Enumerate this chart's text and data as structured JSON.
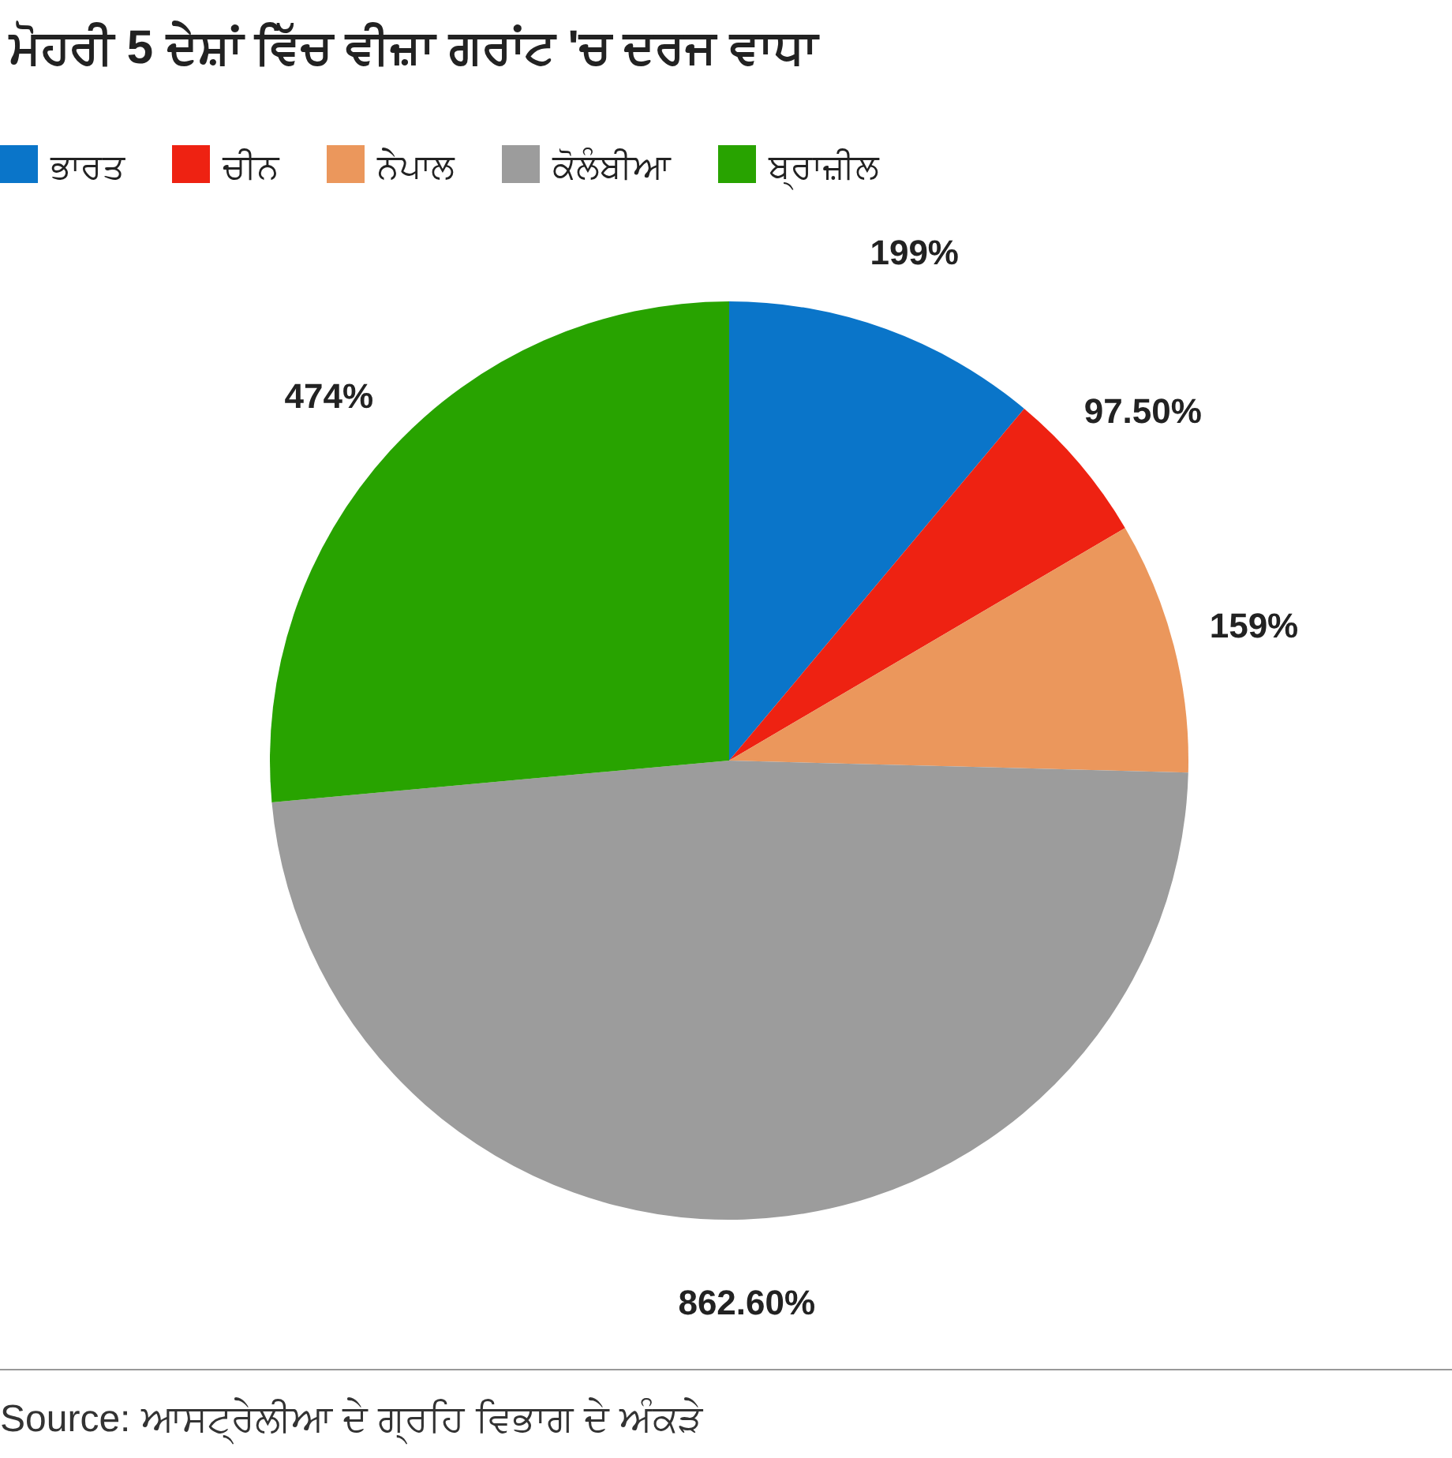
{
  "chart_data": {
    "type": "pie",
    "title": "ਮੋਹਰੀ 5 ਦੇਸ਼ਾਂ ਵਿੱਚ ਵੀਜ਼ਾ ਗਰਾਂਟ 'ਚ ਦਰਜ ਵਾਧਾ",
    "categories": [
      "ਭਾਰਤ",
      "ਚੀਨ",
      "ਨੇਪਾਲ",
      "ਕੋਲੰਬੀਆ",
      "ਬ੍ਰਾਜ਼ੀਲ"
    ],
    "values": [
      199,
      97.5,
      159,
      862.6,
      474
    ],
    "value_labels": [
      "199%",
      "97.50%",
      "159%",
      "862.60%",
      "474%"
    ],
    "colors": [
      "#0a75c9",
      "#ee2212",
      "#eb975c",
      "#9c9c9c",
      "#28a300"
    ],
    "legend": "top",
    "annotations": [
      "Source: ਆਸਟ੍ਰੇਲੀਆ ਦੇ ਗ੍ਰਹਿ ਵਿਭਾਗ ਦੇ ਅੰਕੜੇ"
    ]
  }
}
